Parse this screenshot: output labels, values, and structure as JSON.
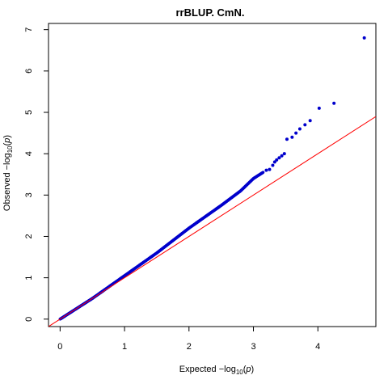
{
  "chart_data": {
    "type": "scatter",
    "title": "rrBLUP. CmN.",
    "xlabel": {
      "prefix": "Expected  −log",
      "subscript": "10",
      "suffix_open": "(",
      "suffix_var": "p",
      "suffix_close": ")"
    },
    "ylabel": {
      "prefix": "Observed  −log",
      "subscript": "10",
      "suffix_open": "(",
      "suffix_var": "p",
      "suffix_close": ")"
    },
    "xlim": [
      -0.18,
      4.9
    ],
    "ylim": [
      -0.18,
      7.15
    ],
    "x_ticks": [
      0,
      1,
      2,
      3,
      4
    ],
    "y_ticks": [
      0,
      1,
      2,
      3,
      4,
      5,
      6,
      7
    ],
    "point_color": "#0000cc",
    "line_color": "#ff0000",
    "reference_line": {
      "slope": 1,
      "intercept": 0,
      "label": ""
    },
    "curve_anchors": [
      [
        0.0,
        0.0
      ],
      [
        0.5,
        0.5
      ],
      [
        1.0,
        1.05
      ],
      [
        1.5,
        1.6
      ],
      [
        2.0,
        2.2
      ],
      [
        2.5,
        2.75
      ],
      [
        2.8,
        3.1
      ],
      [
        3.0,
        3.4
      ],
      [
        3.15,
        3.55
      ]
    ],
    "curve_points": 700,
    "tail_points": [
      [
        3.2,
        3.6
      ],
      [
        3.25,
        3.62
      ],
      [
        3.3,
        3.72
      ],
      [
        3.33,
        3.8
      ],
      [
        3.36,
        3.85
      ],
      [
        3.4,
        3.9
      ],
      [
        3.44,
        3.95
      ],
      [
        3.48,
        4.0
      ],
      [
        3.52,
        4.35
      ],
      [
        3.6,
        4.4
      ],
      [
        3.66,
        4.5
      ],
      [
        3.72,
        4.6
      ],
      [
        3.8,
        4.7
      ],
      [
        3.88,
        4.8
      ],
      [
        4.02,
        5.1
      ],
      [
        4.25,
        5.22
      ],
      [
        4.72,
        6.8
      ]
    ]
  }
}
